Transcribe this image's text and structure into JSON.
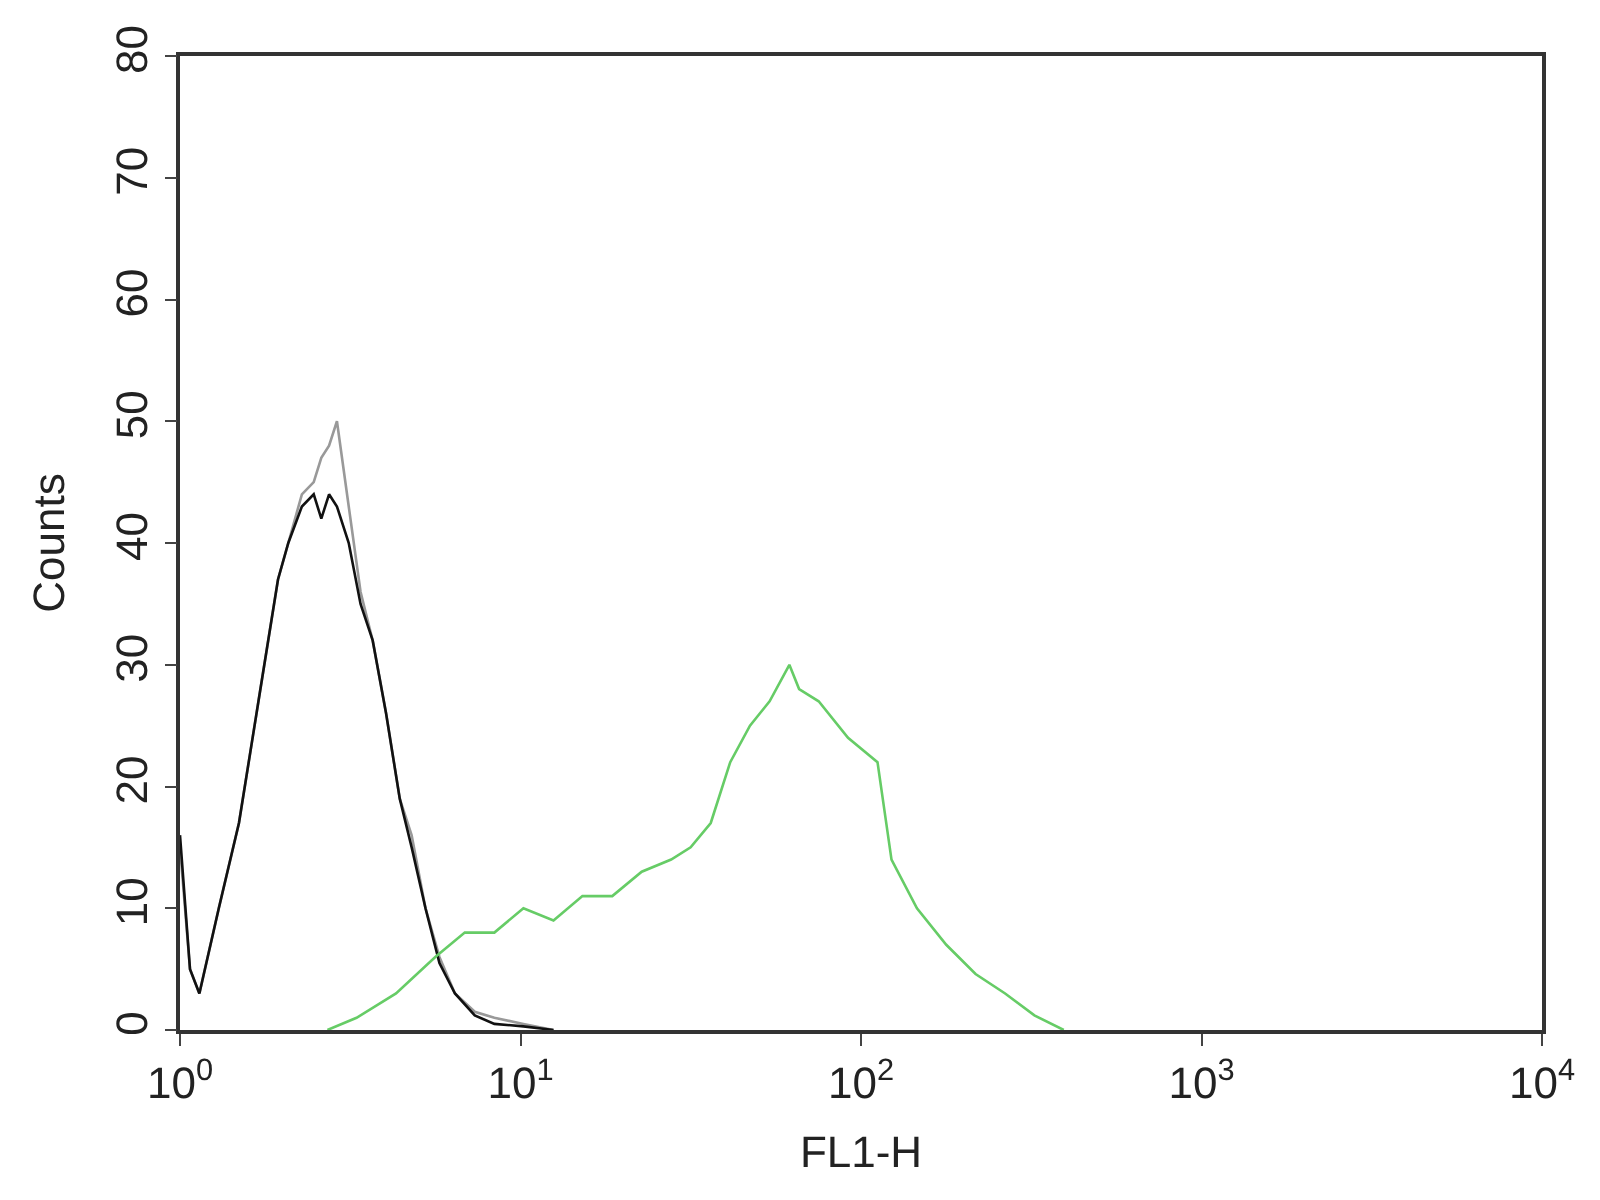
{
  "chart_data": {
    "type": "line",
    "xlabel": "FL1-H",
    "ylabel": "Counts",
    "log": "x",
    "marker": "none",
    "line_style": "solid",
    "xlim": [
      1,
      10000
    ],
    "ylim": [
      0,
      80
    ],
    "xticks": [
      {
        "value": 1,
        "label": "10$^{0}$"
      },
      {
        "value": 10,
        "label": "10$^{1}$"
      },
      {
        "value": 100,
        "label": "10$^{2}$"
      },
      {
        "value": 1000,
        "label": "10$^{3}$"
      },
      {
        "value": 10000,
        "label": "10$^{4}$"
      }
    ],
    "yticks": [
      0,
      10,
      20,
      30,
      40,
      50,
      60,
      70,
      80
    ],
    "series": [
      {
        "color": "#999999",
        "x": [
          1,
          1.07,
          1.14,
          1.3,
          1.49,
          1.7,
          1.94,
          2.08,
          2.28,
          2.47,
          2.6,
          2.74,
          2.89,
          3.13,
          3.39,
          3.68,
          4.03,
          4.42,
          4.79,
          5.26,
          5.78,
          6.42,
          7.34,
          8.38,
          10.2,
          12.5
        ],
        "values": [
          15,
          5,
          3,
          10,
          17,
          27,
          37,
          40,
          44,
          45,
          47,
          48,
          50,
          43,
          36,
          32,
          26,
          19,
          16,
          10,
          6,
          3,
          1.5,
          1,
          0.5,
          0
        ]
      },
      {
        "color": "#111111",
        "x": [
          1,
          1.07,
          1.14,
          1.3,
          1.49,
          1.7,
          1.94,
          2.08,
          2.28,
          2.47,
          2.6,
          2.74,
          2.89,
          3.13,
          3.39,
          3.68,
          4.03,
          4.42,
          4.79,
          5.26,
          5.78,
          6.42,
          7.34,
          8.38,
          10.2,
          12.5
        ],
        "values": [
          16,
          5,
          3,
          10,
          17,
          27,
          37,
          40,
          43,
          44,
          42,
          44,
          43,
          40,
          35,
          32,
          26,
          19,
          15,
          10,
          5.5,
          3,
          1.2,
          0.5,
          0.3,
          0
        ]
      },
      {
        "color": "#66cc66",
        "x": [
          2.71,
          3.3,
          4.31,
          5.62,
          6.86,
          8.38,
          10.2,
          12.5,
          15.2,
          18.6,
          22.7,
          27.7,
          31.6,
          36.2,
          41.3,
          47.2,
          53.9,
          61.6,
          65.8,
          75.1,
          91.6,
          111.8,
          122.9,
          146,
          178,
          217,
          265,
          323,
          394
        ],
        "values": [
          0,
          1,
          3,
          6,
          8,
          8,
          10,
          9,
          11,
          11,
          13,
          14,
          15,
          17,
          22,
          25,
          27,
          30,
          28,
          27,
          24,
          22,
          14,
          10,
          7,
          4.6,
          3,
          1.2,
          0
        ]
      }
    ]
  }
}
